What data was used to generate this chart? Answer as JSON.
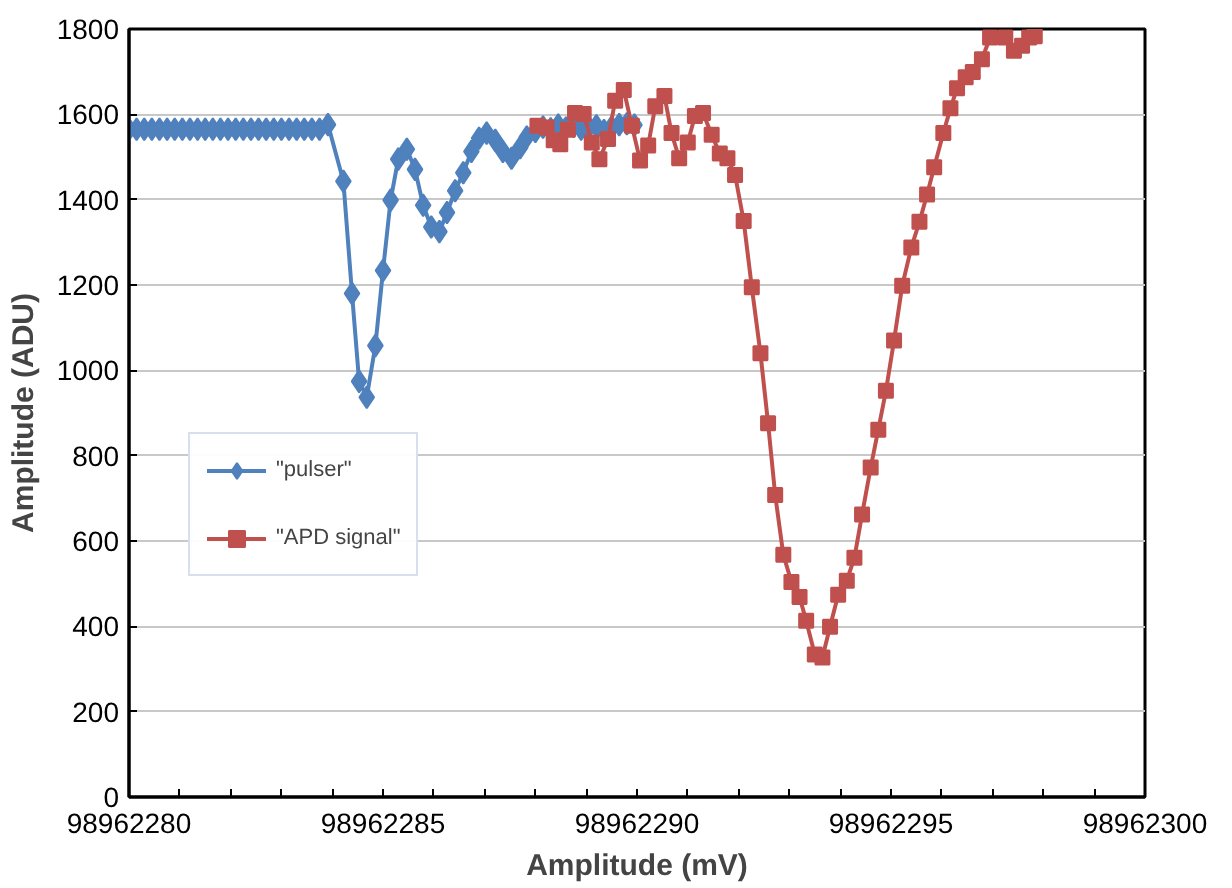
{
  "chart_data": {
    "type": "line",
    "xlabel": "Amplitude (mV)",
    "ylabel": "Amplitude (ADU)",
    "xlim": [
      98962280,
      98962300
    ],
    "ylim": [
      0,
      1800
    ],
    "xticks": [
      98962280,
      {
        "value": 98962281,
        "label": null
      },
      {
        "value": 98962282,
        "label": null
      },
      {
        "value": 98962283,
        "label": null
      },
      {
        "value": 98962284,
        "label": null
      },
      98962285,
      {
        "value": 98962286,
        "label": null
      },
      {
        "value": 98962287,
        "label": null
      },
      {
        "value": 98962288,
        "label": null
      },
      {
        "value": 98962289,
        "label": null
      },
      98962290,
      {
        "value": 98962291,
        "label": null
      },
      {
        "value": 98962292,
        "label": null
      },
      {
        "value": 98962293,
        "label": null
      },
      {
        "value": 98962294,
        "label": null
      },
      98962295,
      {
        "value": 98962296,
        "label": null
      },
      {
        "value": 98962297,
        "label": null
      },
      {
        "value": 98962298,
        "label": null
      },
      {
        "value": 98962299,
        "label": null
      },
      98962300
    ],
    "yticks": [
      0,
      200,
      400,
      600,
      800,
      1000,
      1200,
      1400,
      1600,
      1800
    ],
    "grid": "y",
    "legend": "left",
    "line_style": "solid",
    "series": [
      {
        "name": "\"pulser\"",
        "color": "#4f81bd",
        "marker": "diamond",
        "x": [
          98962280.0,
          98962280.15,
          98962280.3,
          98962280.45,
          98962280.6,
          98962280.75,
          98962280.9,
          98962281.05,
          98962281.2,
          98962281.35,
          98962281.5,
          98962281.65,
          98962281.8,
          98962281.95,
          98962282.1,
          98962282.25,
          98962282.4,
          98962282.55,
          98962282.7,
          98962282.85,
          98962283.0,
          98962283.15,
          98962283.3,
          98962283.45,
          98962283.6,
          98962283.75,
          98962283.917,
          98962284.22,
          98962284.39,
          98962284.53,
          98962284.68,
          98962284.85,
          98962285.0,
          98962285.15,
          98962285.3,
          98962285.47,
          98962285.63,
          98962285.79,
          98962285.95,
          98962286.11,
          98962286.26,
          98962286.42,
          98962286.58,
          98962286.74,
          98962286.89,
          98962287.04,
          98962287.21,
          98962287.36,
          98962287.53,
          98962287.7,
          98962287.83,
          98962288.0,
          98962288.15,
          98962288.3,
          98962288.45,
          98962288.6,
          98962288.75,
          98962288.9,
          98962289.05,
          98962289.2,
          98962289.35,
          98962289.5,
          98962289.65,
          98962289.8,
          98962289.95
        ],
        "values": [
          1565,
          1565,
          1565,
          1565,
          1565,
          1565,
          1565,
          1565,
          1565,
          1565,
          1565,
          1565,
          1565,
          1565,
          1565,
          1565,
          1565,
          1565,
          1565,
          1565,
          1565,
          1565,
          1565,
          1565,
          1565,
          1565,
          1576,
          1443,
          1180,
          974,
          937,
          1058,
          1234,
          1399,
          1495,
          1518,
          1471,
          1387,
          1336,
          1325,
          1370,
          1421,
          1463,
          1513,
          1544,
          1556,
          1539,
          1513,
          1497,
          1522,
          1547,
          1560,
          1570,
          1566,
          1575,
          1568,
          1572,
          1565,
          1570,
          1573,
          1562,
          1570,
          1576,
          1578,
          1575
        ]
      },
      {
        "name": "\"APD signal\"",
        "color": "#c0504d",
        "marker": "square",
        "x": [
          98962288.04,
          98962288.22,
          98962288.36,
          98962288.49,
          98962288.64,
          98962288.78,
          98962288.95,
          98962289.11,
          98962289.26,
          98962289.43,
          98962289.57,
          98962289.74,
          98962289.9,
          98962290.06,
          98962290.22,
          98962290.36,
          98962290.54,
          98962290.68,
          98962290.83,
          98962291.0,
          98962291.14,
          98962291.3,
          98962291.47,
          98962291.63,
          98962291.78,
          98962291.93,
          98962292.1,
          98962292.26,
          98962292.43,
          98962292.58,
          98962292.72,
          98962292.88,
          98962293.04,
          98962293.2,
          98962293.33,
          98962293.5,
          98962293.65,
          98962293.8,
          98962293.96,
          98962294.13,
          98962294.28,
          98962294.43,
          98962294.6,
          98962294.75,
          98962294.9,
          98962295.06,
          98962295.22,
          98962295.4,
          98962295.56,
          98962295.71,
          98962295.85,
          98962296.03,
          98962296.17,
          98962296.3,
          98962296.47,
          98962296.61,
          98962296.79,
          98962296.95,
          98962297.25,
          98962297.42,
          98962297.58,
          98962297.72,
          98962297.83
        ],
        "values": [
          1573,
          1569,
          1539,
          1530,
          1564,
          1603,
          1601,
          1534,
          1495,
          1542,
          1632,
          1657,
          1573,
          1492,
          1527,
          1619,
          1643,
          1556,
          1497,
          1534,
          1596,
          1603,
          1552,
          1508,
          1497,
          1458,
          1350,
          1195,
          1040,
          876,
          708,
          568,
          504,
          469,
          413,
          334,
          327,
          399,
          474,
          507,
          561,
          662,
          772,
          861,
          952,
          1070,
          1198,
          1288,
          1348,
          1412,
          1476,
          1556,
          1614,
          1661,
          1687,
          1699,
          1729,
          1780,
          1780,
          1749,
          1761,
          1780,
          1783
        ]
      }
    ]
  }
}
